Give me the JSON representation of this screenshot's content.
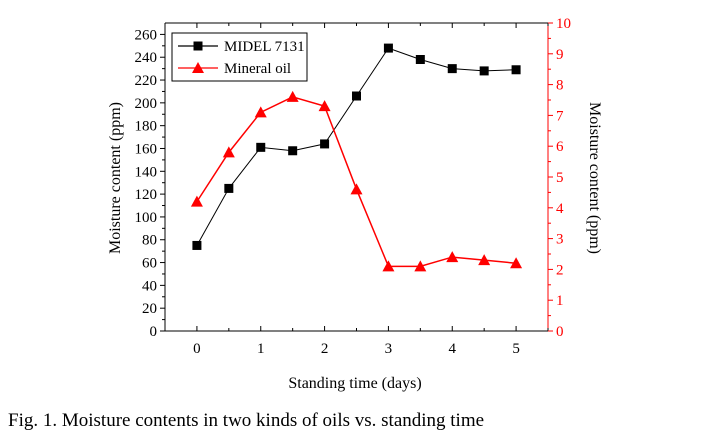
{
  "caption": "Fig. 1.   Moisture contents in two kinds of oils vs. standing time",
  "chart_data": {
    "type": "line",
    "xlabel": "Standing time (days)",
    "ylabel": "Moisture content (ppm)",
    "y2label": "Moisture content (ppm)",
    "xlim": [
      -0.5,
      5.5
    ],
    "ylim": [
      0,
      270
    ],
    "y2lim": [
      0,
      10
    ],
    "xticks": [
      0,
      1,
      2,
      3,
      4,
      5
    ],
    "yticks": [
      0,
      20,
      40,
      60,
      80,
      100,
      120,
      140,
      160,
      180,
      200,
      220,
      240,
      260
    ],
    "y2ticks": [
      0,
      1,
      2,
      3,
      4,
      5,
      6,
      7,
      8,
      9,
      10
    ],
    "grid": false,
    "legend_position": "top-left",
    "series": [
      {
        "name": "MIDEL 7131",
        "axis": "left",
        "color": "#000000",
        "marker": "square",
        "x": [
          0,
          0.5,
          1,
          1.5,
          2,
          2.5,
          3,
          3.5,
          4,
          4.5,
          5
        ],
        "values": [
          75,
          125,
          161,
          158,
          164,
          206,
          248,
          238,
          230,
          228,
          229
        ]
      },
      {
        "name": "Mineral oil",
        "axis": "right",
        "color": "#ff0000",
        "marker": "triangle",
        "x": [
          0,
          0.5,
          1,
          1.5,
          2,
          2.5,
          3,
          3.5,
          4,
          4.5,
          5
        ],
        "values": [
          4.2,
          5.8,
          7.1,
          7.6,
          7.3,
          4.6,
          2.1,
          2.1,
          2.4,
          2.3,
          2.2
        ]
      }
    ]
  }
}
